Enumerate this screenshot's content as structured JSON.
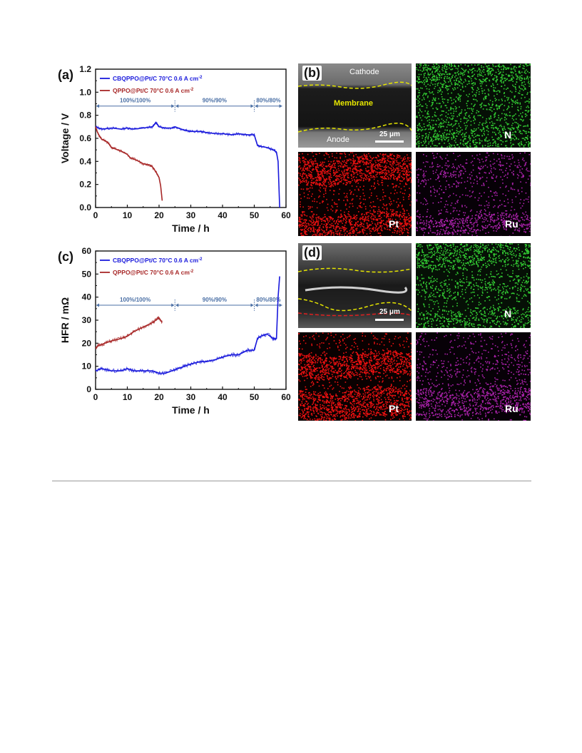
{
  "figure": {
    "panel_labels": {
      "a": "(a)",
      "b": "(b)",
      "c": "(c)",
      "d": "(d)"
    },
    "legend": {
      "series1": "CBQPPO@Pt/C 70°C 0.6 A cm",
      "series2": "QPPO@Pt/C 70°C 0.6 A cm",
      "superscript": "-2"
    },
    "conditions": [
      "100%/100%",
      "90%/90%",
      "80%/80%"
    ],
    "sem_labels": {
      "cathode": "Cathode",
      "membrane": "Membrane",
      "anode": "Anode",
      "scale": "25 μm"
    },
    "element_labels": {
      "n": "N",
      "pt": "Pt",
      "ru": "Ru"
    },
    "colors": {
      "series1": "#1a1adc",
      "series2": "#a82828",
      "annotation": "#4a6fa5",
      "dashed_boundary": "#e6e600",
      "dashed_red": "#e02020",
      "N_map": "#33cc33",
      "Pt_map": "#ee1111",
      "Ru_map": "#aa22aa"
    }
  },
  "chart_data": [
    {
      "type": "line",
      "panel": "(a)",
      "xlabel": "Time / h",
      "ylabel": "Voltage / V",
      "xlim": [
        0,
        60
      ],
      "ylim": [
        0,
        1.2
      ],
      "xticks": [
        0,
        10,
        20,
        30,
        40,
        50,
        60
      ],
      "yticks": [
        0.0,
        0.2,
        0.4,
        0.6,
        0.8,
        1.0,
        1.2
      ],
      "series": [
        {
          "name": "CBQPPO@Pt/C 70°C 0.6 A cm-2",
          "x": [
            0,
            2,
            5,
            8,
            10,
            12,
            15,
            18,
            19,
            20,
            22,
            24,
            25,
            28,
            30,
            33,
            35,
            38,
            40,
            43,
            45,
            48,
            50,
            51,
            52,
            54,
            56,
            57,
            57.5,
            58
          ],
          "y": [
            0.7,
            0.68,
            0.69,
            0.68,
            0.69,
            0.68,
            0.69,
            0.7,
            0.74,
            0.7,
            0.69,
            0.69,
            0.7,
            0.67,
            0.66,
            0.66,
            0.65,
            0.64,
            0.64,
            0.63,
            0.64,
            0.63,
            0.63,
            0.54,
            0.53,
            0.52,
            0.5,
            0.48,
            0.4,
            0.0
          ]
        },
        {
          "name": "QPPO@Pt/C 70°C 0.6 A cm-2",
          "x": [
            0,
            0.5,
            1,
            2,
            3,
            4,
            5,
            6,
            8,
            10,
            11,
            13,
            15,
            17,
            18,
            19,
            20,
            20.5,
            21
          ],
          "y": [
            0.7,
            0.66,
            0.63,
            0.59,
            0.58,
            0.56,
            0.52,
            0.51,
            0.49,
            0.46,
            0.43,
            0.41,
            0.38,
            0.37,
            0.35,
            0.31,
            0.26,
            0.19,
            0.06
          ]
        }
      ],
      "annotations": [
        {
          "text": "100%/100%",
          "x_start": 0,
          "x_end": 25
        },
        {
          "text": "90%/90%",
          "x_start": 25,
          "x_end": 50
        },
        {
          "text": "80%/80%",
          "x_start": 50,
          "x_end": 59
        }
      ],
      "legend_position": "top-left"
    },
    {
      "type": "line",
      "panel": "(c)",
      "xlabel": "Time / h",
      "ylabel": "HFR / mΩ",
      "xlim": [
        0,
        60
      ],
      "ylim": [
        0,
        60
      ],
      "xticks": [
        0,
        10,
        20,
        30,
        40,
        50,
        60
      ],
      "yticks": [
        0,
        10,
        20,
        30,
        40,
        50,
        60
      ],
      "series": [
        {
          "name": "CBQPPO@Pt/C 70°C 0.6 A cm-2",
          "x": [
            0,
            2,
            5,
            8,
            10,
            12,
            15,
            18,
            20,
            22,
            24,
            26,
            28,
            30,
            33,
            35,
            38,
            40,
            43,
            45,
            48,
            50,
            51,
            52,
            54,
            56,
            57,
            57.5,
            58
          ],
          "y": [
            8,
            9,
            8,
            8,
            9,
            8,
            8,
            8,
            7,
            7,
            8,
            9,
            10,
            11,
            12,
            12,
            13,
            14,
            15,
            15,
            17,
            17,
            22,
            23,
            24,
            22,
            22,
            40,
            49
          ]
        },
        {
          "name": "QPPO@Pt/C 70°C 0.6 A cm-2",
          "x": [
            0,
            1,
            3,
            5,
            8,
            10,
            12,
            15,
            18,
            19,
            20,
            21
          ],
          "y": [
            18,
            19,
            20,
            21,
            22,
            23,
            25,
            27,
            29,
            30,
            31,
            29
          ]
        }
      ],
      "annotations": [
        {
          "text": "100%/100%",
          "x_start": 0,
          "x_end": 25
        },
        {
          "text": "90%/90%",
          "x_start": 25,
          "x_end": 50
        },
        {
          "text": "80%/80%",
          "x_start": 50,
          "x_end": 59
        }
      ],
      "legend_position": "top-left"
    }
  ]
}
